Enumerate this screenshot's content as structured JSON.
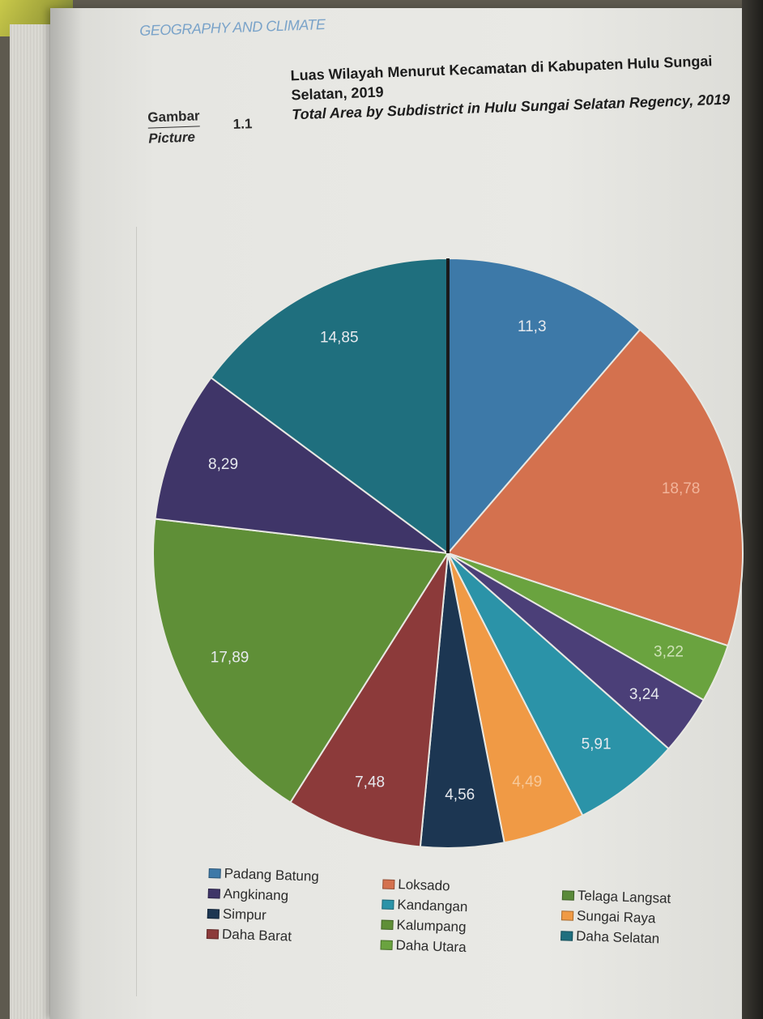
{
  "page": {
    "section_header": "GEOGRAPHY AND CLIMATE",
    "figure_label_id": "Gambar",
    "figure_label_en": "Picture",
    "figure_number": "1.1",
    "title_id": "Luas Wilayah Menurut Kecamatan di Kabupaten Hulu Sungai Selatan, 2019",
    "title_en": "Total Area by Subdistrict in Hulu Sungai Selatan Regency, 2019"
  },
  "chart_data": {
    "type": "pie",
    "title": "Luas Wilayah Menurut Kecamatan di Kabupaten Hulu Sungai Selatan, 2019",
    "subtitle": "Total Area by Subdistrict in Hulu Sungai Selatan Regency, 2019",
    "legend_position": "bottom",
    "start": "top (12 o'clock), clockwise",
    "slices": [
      {
        "label": "11,3",
        "value": 11.3,
        "color": "#3d79a8"
      },
      {
        "label": "18,78",
        "value": 18.78,
        "color": "#d4714e"
      },
      {
        "label": "3,22",
        "value": 3.22,
        "color": "#6aa33f"
      },
      {
        "label": "3,24",
        "value": 3.24,
        "color": "#4b3f78"
      },
      {
        "label": "5,91",
        "value": 5.91,
        "color": "#2b93a8"
      },
      {
        "label": "4,49",
        "value": 4.49,
        "color": "#f09a45"
      },
      {
        "label": "4,56",
        "value": 4.56,
        "color": "#1c3652"
      },
      {
        "label": "7,48",
        "value": 7.48,
        "color": "#8c3a3a"
      },
      {
        "label": "17,89",
        "value": 17.89,
        "color": "#5f8f37"
      },
      {
        "label": "8,29",
        "value": 8.29,
        "color": "#3f3568"
      },
      {
        "label": "14,85",
        "value": 14.85,
        "color": "#1f6f7e"
      }
    ],
    "legend": [
      {
        "name": "Padang Batung",
        "color": "#3d79a8"
      },
      {
        "name": "Angkinang",
        "color": "#3f3568"
      },
      {
        "name": "Simpur",
        "color": "#1c3652"
      },
      {
        "name": "Daha Barat",
        "color": "#8c3a3a"
      },
      {
        "name": "Loksado",
        "color": "#d4714e"
      },
      {
        "name": "Kandangan",
        "color": "#2b93a8"
      },
      {
        "name": "Kalumpang",
        "color": "#5f8f37"
      },
      {
        "name": "Daha Utara",
        "color": "#6aa33f"
      },
      {
        "name": "Telaga Langsat",
        "color": "#5a8a3a"
      },
      {
        "name": "Sungai Raya",
        "color": "#f09a45"
      },
      {
        "name": "Daha Selatan",
        "color": "#1f6f7e"
      }
    ]
  }
}
